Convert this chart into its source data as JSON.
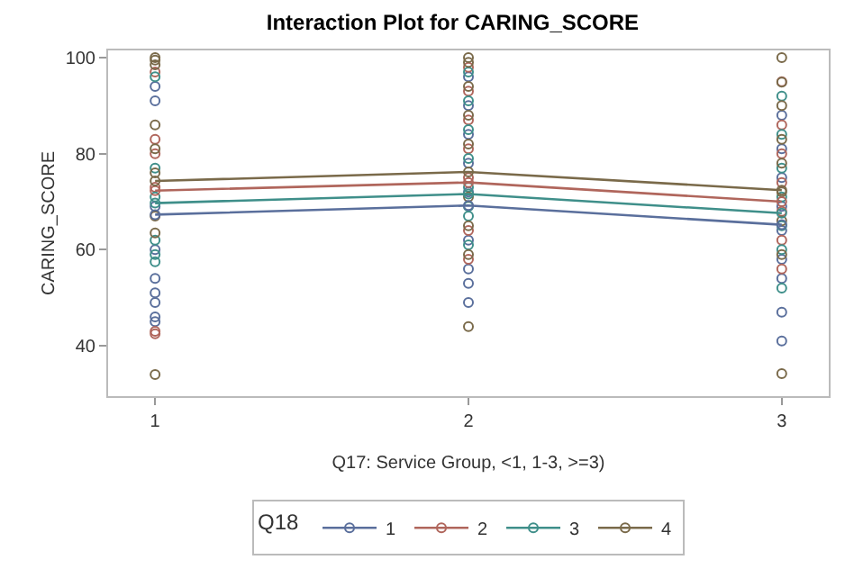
{
  "chart_data": {
    "type": "line",
    "title": "Interaction Plot for CARING_SCORE",
    "xlabel": "Q17: Service Group, <1, 1-3, >=3)",
    "ylabel": "CARING_SCORE",
    "legend_title": "Q18",
    "categories": [
      "1",
      "2",
      "3"
    ],
    "ylim": [
      29.5,
      101.5
    ],
    "yticks": [
      40,
      60,
      80,
      100
    ],
    "grid": false,
    "legend": "bottom",
    "marker": "circle",
    "series": [
      {
        "type": "scatter",
        "color": "#5a6f9c",
        "x": [
          "1",
          "1",
          "1",
          "1",
          "1",
          "1",
          "1",
          "1",
          "1",
          "2",
          "2",
          "2",
          "2",
          "2",
          "2",
          "2",
          "2",
          "2",
          "2",
          "3",
          "3",
          "3",
          "3",
          "3",
          "3",
          "3",
          "3",
          "3"
        ],
        "values": [
          94,
          91,
          69,
          60,
          54,
          51,
          49,
          46,
          45,
          96,
          90,
          84,
          78,
          72,
          null,
          62,
          56,
          53,
          49,
          88,
          81,
          75,
          69,
          64,
          58,
          54,
          47,
          41
        ]
      },
      {
        "type": "scatter",
        "color": "#b0665c",
        "x": [
          "1",
          "1",
          "1",
          "1",
          "1",
          "1",
          "1",
          "2",
          "2",
          "2",
          "2",
          "2",
          "2",
          "2",
          "2",
          "3",
          "3",
          "3",
          "3",
          "3",
          "3",
          "3"
        ],
        "values": [
          97,
          83,
          80,
          73,
          null,
          43,
          42.5,
          98,
          93,
          87,
          81,
          75,
          null,
          64,
          58,
          95,
          86,
          80,
          74,
          68,
          62,
          56
        ]
      },
      {
        "type": "scatter",
        "color": "#3f8f8a",
        "x": [
          "1",
          "1",
          "1",
          "1",
          "1",
          "1",
          "2",
          "2",
          "2",
          "2",
          "2",
          "2",
          "2",
          "2",
          "3",
          "3",
          "3",
          "3",
          "3",
          "3",
          "3"
        ],
        "values": [
          96,
          77,
          71,
          62,
          59,
          57.5,
          97,
          91,
          85,
          79,
          73,
          69,
          67,
          61,
          92,
          84,
          77,
          71,
          65,
          60,
          52
        ]
      },
      {
        "type": "scatter",
        "color": "#7a6a4a",
        "x": [
          "1",
          "1",
          "1",
          "1",
          "1",
          "1",
          "1",
          "1",
          "1",
          "2",
          "2",
          "2",
          "2",
          "2",
          "2",
          "2",
          "2",
          "2",
          "2",
          "3",
          "3",
          "3",
          "3",
          "3",
          "3",
          "3",
          "3",
          "3"
        ],
        "values": [
          100,
          99.5,
          98.5,
          86,
          81,
          76,
          67,
          63.5,
          34,
          100,
          99,
          94,
          88,
          82,
          null,
          71,
          65,
          59,
          44,
          100,
          94.9,
          90,
          83,
          78,
          72,
          66,
          59,
          34.2
        ]
      },
      {
        "name": "1",
        "color": "#5a6f9c",
        "values": [
          67.3,
          69.2,
          65.2
        ]
      },
      {
        "name": "2",
        "color": "#b0665c",
        "values": [
          72.3,
          74.0,
          70.0
        ]
      },
      {
        "name": "3",
        "color": "#3f8f8a",
        "values": [
          69.7,
          71.6,
          67.6
        ]
      },
      {
        "name": "4",
        "color": "#7a6a4a",
        "values": [
          74.3,
          76.2,
          72.4
        ]
      }
    ]
  }
}
